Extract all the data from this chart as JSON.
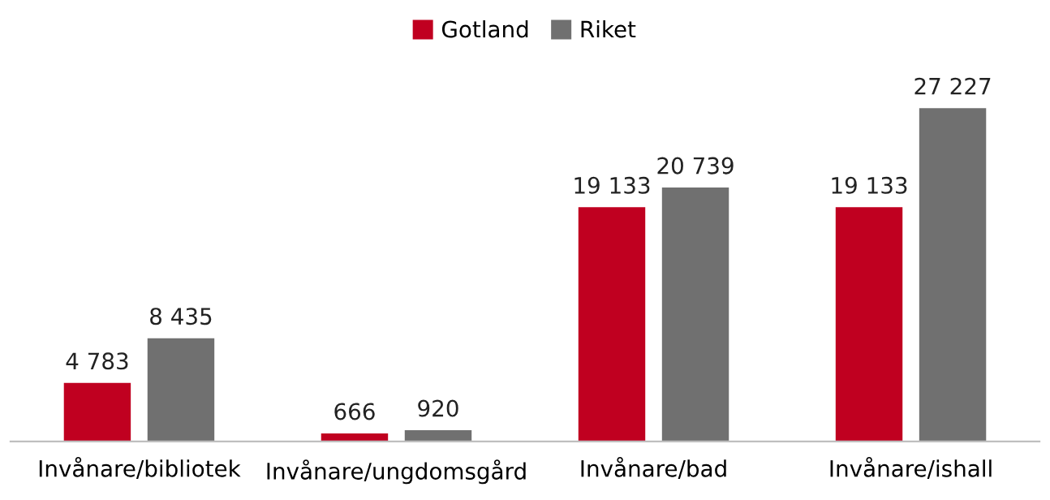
{
  "chart_data": {
    "type": "bar",
    "categories": [
      "Invånare/bibliotek",
      "Invånare/ungdomsgård",
      "Invånare/bad",
      "Invånare/ishall"
    ],
    "series": [
      {
        "name": "Gotland",
        "color": "#c00020",
        "values": [
          4783,
          666,
          19133,
          19133
        ],
        "value_labels": [
          "4 783",
          "666",
          "19 133",
          "19 133"
        ]
      },
      {
        "name": "Riket",
        "color": "#707070",
        "values": [
          8435,
          920,
          20739,
          27227
        ],
        "value_labels": [
          "8 435",
          "920",
          "20 739",
          "27 227"
        ]
      }
    ],
    "legend": "top",
    "grid": false,
    "tick_labels": "x"
  }
}
